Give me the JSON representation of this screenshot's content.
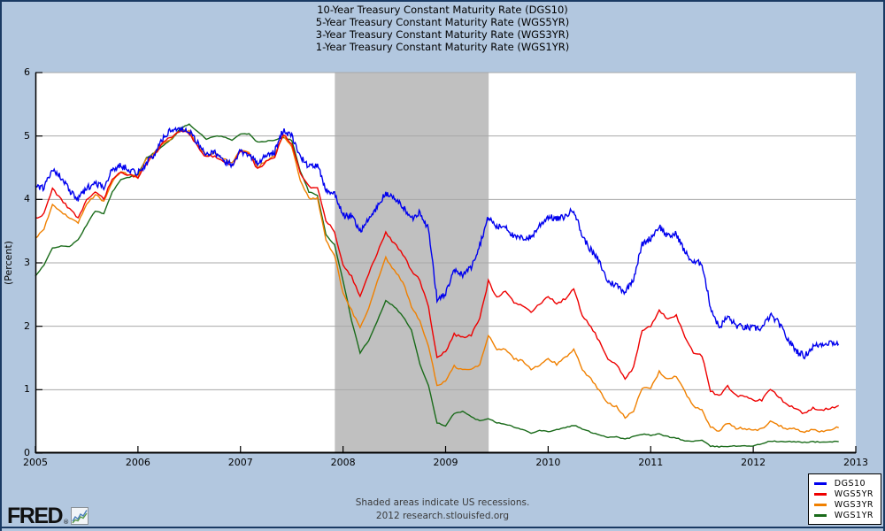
{
  "header": {
    "title_lines": [
      "10-Year Treasury Constant Maturity Rate (DGS10)",
      "5-Year Treasury Constant Maturity Rate (WGS5YR)",
      "3-Year Treasury Constant Maturity Rate (WGS3YR)",
      "1-Year Treasury Constant Maturity Rate (WGS1YR)"
    ]
  },
  "footer": {
    "note_line1": "Shaded areas indicate US recessions.",
    "note_line2": "2012 research.stlouisfed.org",
    "logo_text": "FRED",
    "logo_reg": "®"
  },
  "legend": {
    "items": [
      {
        "label": "DGS10",
        "color": "#0000ee"
      },
      {
        "label": "WGS5YR",
        "color": "#ee0000"
      },
      {
        "label": "WGS3YR",
        "color": "#f08000"
      },
      {
        "label": "WGS1YR",
        "color": "#1a6b1a"
      }
    ]
  },
  "colors": {
    "background": "#b2c7df",
    "plot_background": "#ffffff",
    "recession_band": "#c0c0c0",
    "gridline": "#a8a8a8",
    "axis": "#000000",
    "frame": "#1a3a63"
  },
  "chart_data": {
    "type": "line",
    "title": "",
    "xlabel": "",
    "ylabel": "(Percent)",
    "xlim": [
      2005,
      2013
    ],
    "ylim": [
      0,
      6
    ],
    "xticks": [
      2005,
      2006,
      2007,
      2008,
      2009,
      2010,
      2011,
      2012,
      2013
    ],
    "yticks": [
      0,
      1,
      2,
      3,
      4,
      5,
      6
    ],
    "grid": true,
    "legend_position": "bottom-right",
    "recession_bands": [
      {
        "start": 2007.92,
        "end": 2009.42
      }
    ],
    "x_start": 2005.0,
    "x_step_months": 1,
    "series": [
      {
        "name": "DGS10",
        "color": "#0000ee",
        "values": [
          4.22,
          4.17,
          4.5,
          4.34,
          4.14,
          4.0,
          4.18,
          4.26,
          4.2,
          4.46,
          4.54,
          4.47,
          4.42,
          4.57,
          4.72,
          4.99,
          5.11,
          5.11,
          5.09,
          4.88,
          4.72,
          4.73,
          4.6,
          4.56,
          4.76,
          4.72,
          4.56,
          4.69,
          4.75,
          5.1,
          5.0,
          4.67,
          4.52,
          4.53,
          4.15,
          4.1,
          3.74,
          3.74,
          3.51,
          3.68,
          3.88,
          4.1,
          4.01,
          3.89,
          3.69,
          3.81,
          3.53,
          2.42,
          2.52,
          2.87,
          2.82,
          2.93,
          3.29,
          3.72,
          3.56,
          3.59,
          3.4,
          3.39,
          3.4,
          3.59,
          3.73,
          3.69,
          3.73,
          3.85,
          3.42,
          3.2,
          3.01,
          2.7,
          2.65,
          2.54,
          2.76,
          3.29,
          3.39,
          3.58,
          3.41,
          3.46,
          3.17,
          3.0,
          3.0,
          2.3,
          1.98,
          2.15,
          2.01,
          1.98,
          1.97,
          1.97,
          2.17,
          2.05,
          1.8,
          1.62,
          1.53,
          1.68,
          1.72,
          1.75,
          1.72
        ]
      },
      {
        "name": "WGS5YR",
        "color": "#ee0000",
        "values": [
          3.71,
          3.77,
          4.17,
          4.0,
          3.85,
          3.7,
          3.98,
          4.12,
          4.01,
          4.33,
          4.42,
          4.39,
          4.35,
          4.57,
          4.72,
          4.9,
          5.0,
          5.07,
          5.04,
          4.82,
          4.67,
          4.69,
          4.58,
          4.53,
          4.75,
          4.71,
          4.48,
          4.59,
          4.67,
          5.03,
          4.88,
          4.43,
          4.2,
          4.2,
          3.67,
          3.49,
          2.98,
          2.78,
          2.48,
          2.84,
          3.15,
          3.49,
          3.3,
          3.14,
          2.88,
          2.73,
          2.29,
          1.52,
          1.6,
          1.87,
          1.82,
          1.86,
          2.13,
          2.71,
          2.46,
          2.57,
          2.37,
          2.33,
          2.23,
          2.34,
          2.48,
          2.36,
          2.43,
          2.58,
          2.18,
          2.0,
          1.76,
          1.47,
          1.41,
          1.18,
          1.35,
          1.93,
          1.99,
          2.26,
          2.11,
          2.17,
          1.84,
          1.58,
          1.54,
          0.98,
          0.9,
          1.06,
          0.91,
          0.89,
          0.84,
          0.83,
          1.02,
          0.89,
          0.76,
          0.71,
          0.62,
          0.71,
          0.67,
          0.71,
          0.75
        ]
      },
      {
        "name": "WGS3YR",
        "color": "#f08000",
        "values": [
          3.39,
          3.54,
          3.91,
          3.79,
          3.72,
          3.64,
          3.91,
          4.08,
          3.96,
          4.29,
          4.43,
          4.39,
          4.35,
          4.64,
          4.74,
          4.89,
          4.97,
          5.09,
          5.07,
          4.85,
          4.69,
          4.72,
          4.64,
          4.58,
          4.79,
          4.75,
          4.51,
          4.6,
          4.69,
          5.0,
          4.82,
          4.31,
          4.01,
          4.03,
          3.35,
          3.13,
          2.51,
          2.25,
          1.97,
          2.28,
          2.69,
          3.08,
          2.87,
          2.7,
          2.32,
          2.07,
          1.69,
          1.07,
          1.13,
          1.37,
          1.31,
          1.32,
          1.39,
          1.86,
          1.64,
          1.65,
          1.48,
          1.46,
          1.32,
          1.38,
          1.49,
          1.4,
          1.51,
          1.64,
          1.32,
          1.17,
          0.98,
          0.78,
          0.74,
          0.57,
          0.67,
          1.02,
          1.03,
          1.28,
          1.17,
          1.21,
          0.96,
          0.75,
          0.67,
          0.41,
          0.35,
          0.47,
          0.39,
          0.39,
          0.36,
          0.38,
          0.51,
          0.43,
          0.39,
          0.39,
          0.33,
          0.37,
          0.34,
          0.38,
          0.4
        ]
      },
      {
        "name": "WGS1YR",
        "color": "#1a6b1a",
        "values": [
          2.79,
          2.96,
          3.24,
          3.26,
          3.26,
          3.36,
          3.6,
          3.82,
          3.78,
          4.12,
          4.31,
          4.35,
          4.39,
          4.66,
          4.74,
          4.85,
          4.96,
          5.12,
          5.19,
          5.07,
          4.95,
          5.0,
          4.99,
          4.93,
          5.04,
          5.03,
          4.9,
          4.92,
          4.93,
          4.98,
          4.93,
          4.45,
          4.12,
          4.06,
          3.45,
          3.28,
          2.72,
          2.09,
          1.58,
          1.78,
          2.08,
          2.41,
          2.31,
          2.16,
          1.94,
          1.4,
          1.06,
          0.48,
          0.42,
          0.63,
          0.66,
          0.57,
          0.51,
          0.55,
          0.48,
          0.46,
          0.41,
          0.37,
          0.32,
          0.36,
          0.34,
          0.37,
          0.4,
          0.44,
          0.38,
          0.33,
          0.29,
          0.25,
          0.26,
          0.22,
          0.26,
          0.3,
          0.28,
          0.3,
          0.26,
          0.24,
          0.19,
          0.19,
          0.2,
          0.11,
          0.1,
          0.11,
          0.11,
          0.12,
          0.11,
          0.15,
          0.19,
          0.18,
          0.18,
          0.18,
          0.17,
          0.18,
          0.17,
          0.18,
          0.18
        ]
      }
    ]
  }
}
